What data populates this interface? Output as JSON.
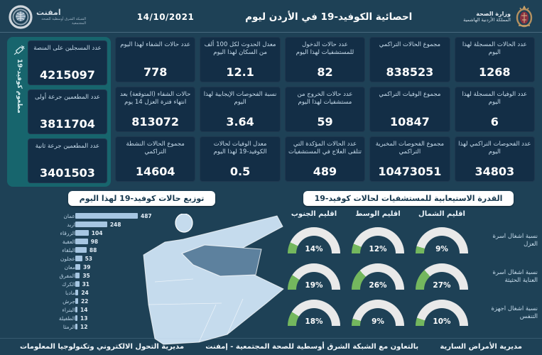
{
  "header": {
    "title": "احصائية الكوفيد-19 في الأردن ليوم",
    "date": "14/10/2021",
    "ministry": {
      "name": "وزارة الصحة",
      "sub": "المملكة الأردنية الهاشمية"
    },
    "emphnet": {
      "name": "امفنت",
      "sub": "الشبكة الشرق أوسطية للصحة المجتمعية"
    }
  },
  "stats": {
    "columns": [
      {
        "cards": [
          {
            "label": "عدد الحالات المسجلة لهذا اليوم",
            "value": "1268"
          },
          {
            "label": "عدد الوفيات المسجلة لهذا اليوم",
            "value": "6"
          },
          {
            "label": "عدد الفحوصات التراكمي لهذا اليوم",
            "value": "34803"
          }
        ]
      },
      {
        "cards": [
          {
            "label": "مجموع الحالات التراكمي",
            "value": "838523"
          },
          {
            "label": "مجموع الوفيات التراكمي",
            "value": "10847"
          },
          {
            "label": "مجموع الفحوصات المخبرية التراكمي",
            "value": "10473051"
          }
        ]
      },
      {
        "cards": [
          {
            "label": "عدد حالات الدخول للمستشفيات لهذا اليوم",
            "value": "82"
          },
          {
            "label": "عدد حالات الخروج من مستشفيات لهذا اليوم",
            "value": "59"
          },
          {
            "label": "عدد الحالات المؤكدة التي تتلقى العلاج في المستشفيات",
            "value": "489"
          }
        ]
      },
      {
        "cards": [
          {
            "label": "معدل الحدوث لكل 100 ألف من السكان لهذا اليوم",
            "value": "12.1"
          },
          {
            "label": "نسبة الفحوصات الإيجابية لهذا اليوم",
            "value": "3.64"
          },
          {
            "label": "معدل الوفيات لحالات الكوفيد-19 لهذا اليوم",
            "value": "0.5"
          }
        ]
      },
      {
        "cards": [
          {
            "label": "عدد حالات الشفاء لهذا اليوم",
            "value": "778"
          },
          {
            "label": "حالات الشفاء (المتوقعة) بعد انتهاء فترة العزل 14 يوم",
            "value": "813072"
          },
          {
            "label": "مجموع الحالات النشطة التراكمي",
            "value": "14604"
          }
        ]
      }
    ]
  },
  "vaccination": {
    "side_label": "مطعوم كوفيد-19",
    "cards": [
      {
        "label": "عدد المسجلين على المنصة",
        "value": "4215097"
      },
      {
        "label": "عدد المطعمين جرعة أولى",
        "value": "3811704"
      },
      {
        "label": "عدد المطعمين جرعة ثانية",
        "value": "3401503"
      }
    ]
  },
  "chart_data": [
    {
      "type": "bar",
      "orientation": "horizontal",
      "title": "توزيع حالات كوفيد-19 لهذا اليوم",
      "categories": [
        "عمان",
        "اربد",
        "الزرقاء",
        "العقبة",
        "البلقاء",
        "عجلون",
        "معان",
        "المفرق",
        "الكرك",
        "مادبا",
        "جرش",
        "البتراء",
        "الطفيلة",
        "الرمثا"
      ],
      "values": [
        487,
        248,
        104,
        98,
        88,
        53,
        39,
        35,
        31,
        24,
        22,
        14,
        13,
        12
      ],
      "xlabel": "",
      "ylabel": "",
      "xlim": [
        0,
        487
      ],
      "grid": false
    },
    {
      "type": "gauge-grid",
      "title": "القدرة الاستيعابية للمستشفيات لحالات كوفيد-19",
      "unit": "%",
      "range": [
        0,
        100
      ],
      "columns": [
        "اقليم الشمال",
        "اقليم الوسط",
        "اقليم الجنوب"
      ],
      "rows": [
        {
          "label": "نسبة اشغال اسرة العزل",
          "values": [
            9,
            12,
            14
          ]
        },
        {
          "label": "نسبة اشغال اسرة العناية الحثيثة",
          "values": [
            27,
            26,
            19
          ]
        },
        {
          "label": "نسبة اشغال اجهزة التنفس",
          "values": [
            10,
            9,
            18
          ]
        }
      ]
    }
  ],
  "footer": {
    "right": "مديرية الأمراض السارية",
    "center": "بالتعاون مع الشبكة الشرق أوسطية للصحة المجتمعية - إمفنت",
    "left": "مديرية التحول الالكتروني وتكنولوجيا المعلومات"
  },
  "colors": {
    "background": "#1e4156",
    "card": "#132e46",
    "teal": "#17656d",
    "bar": "#a6c6e2",
    "gauge_green": "#74b75e",
    "gauge_track": "#e9e9e9",
    "map_light": "#c5dbed",
    "map_dark": "#5d819e"
  }
}
